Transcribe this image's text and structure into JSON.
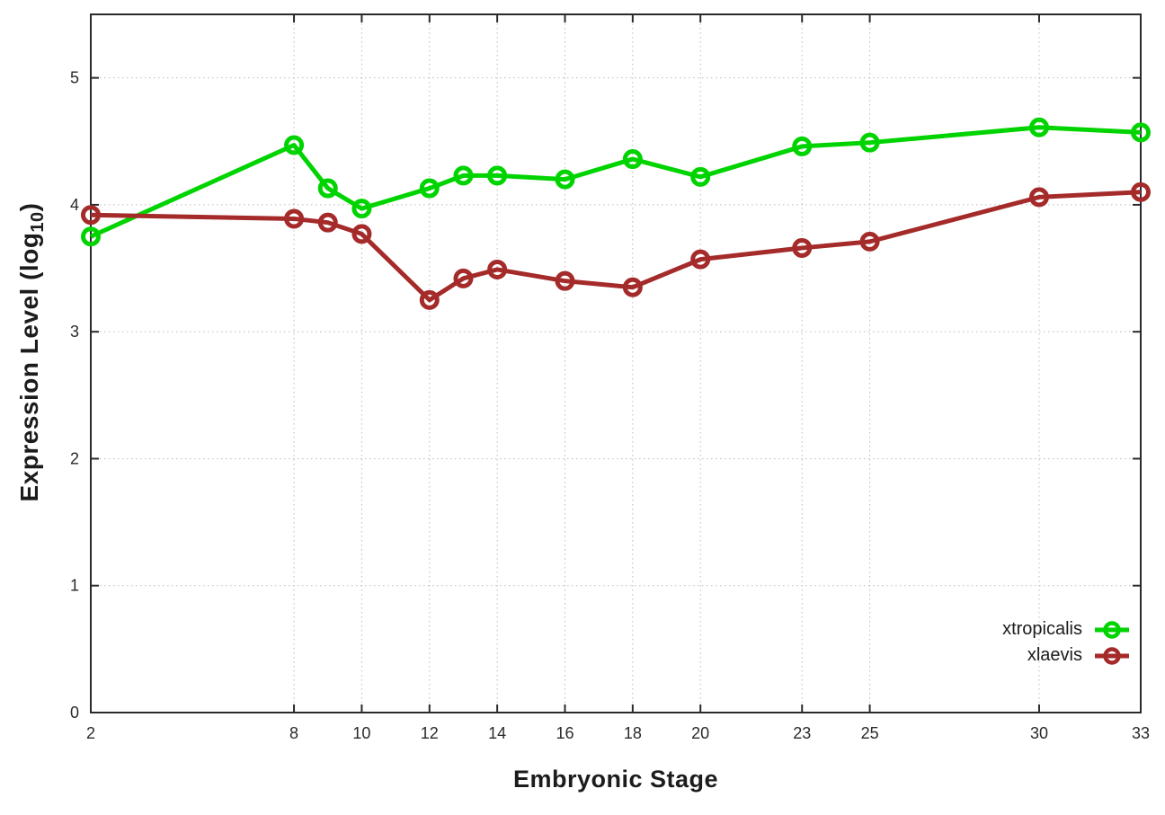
{
  "chart_data": {
    "type": "line",
    "title": "",
    "xlabel": "Embryonic Stage",
    "ylabel": "Expression Level (log10)",
    "ylabel_main": "Expression Level (log",
    "ylabel_sub": "10",
    "ylabel_close": ")",
    "x": [
      2,
      8,
      9,
      10,
      12,
      13,
      14,
      16,
      18,
      20,
      23,
      25,
      30,
      33
    ],
    "x_ticks": [
      2,
      8,
      10,
      12,
      14,
      16,
      18,
      20,
      23,
      25,
      30,
      33
    ],
    "y_ticks": [
      0,
      1,
      2,
      3,
      4,
      5
    ],
    "xlim": [
      2,
      33
    ],
    "ylim": [
      0,
      5.5
    ],
    "grid": true,
    "legend_position": "bottom-right-inside",
    "series": [
      {
        "name": "xtropicalis",
        "color": "#00d400",
        "values": [
          3.75,
          4.47,
          4.13,
          3.97,
          4.13,
          4.23,
          4.23,
          4.2,
          4.36,
          4.22,
          4.46,
          4.49,
          4.61,
          4.57
        ]
      },
      {
        "name": "xlaevis",
        "color": "#a52a2a",
        "values": [
          3.92,
          3.89,
          3.86,
          3.77,
          3.25,
          3.42,
          3.49,
          3.4,
          3.35,
          3.57,
          3.66,
          3.71,
          4.06,
          4.1
        ]
      }
    ],
    "style": {
      "axis_color": "#2a2a2a",
      "grid_color": "#bbbbbb",
      "text_color": "#2a2a2a",
      "line_width": 5,
      "marker": "open-circle"
    }
  }
}
